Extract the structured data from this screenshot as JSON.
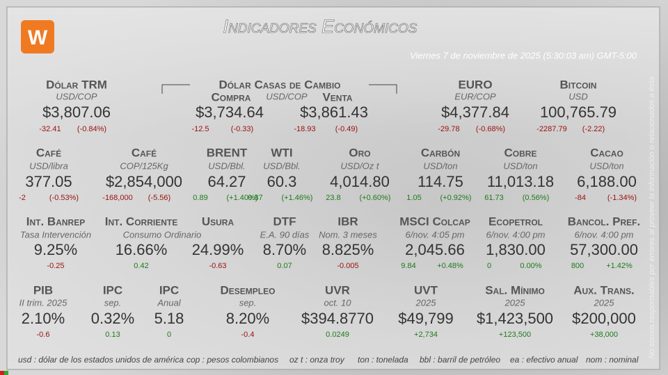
{
  "header": {
    "title": "Indicadores Económicos",
    "date": "Viernes 7 de noviembre de 2025 (5:30:03 am) GMT-5:00"
  },
  "casas": {
    "name": "Dólar Casas de Cambio",
    "unit": "USD/COP",
    "compra": {
      "label": "Compra",
      "value": "$3,734.64",
      "change": "-12.5",
      "pct": "(-0.33)"
    },
    "venta": {
      "label": "Venta",
      "value": "$3,861.43",
      "change": "-18.93",
      "pct": "(-0.49)"
    }
  },
  "indicators": [
    {
      "name": "Dólar TRM",
      "unit": "USD/COP",
      "value": "$3,807.06",
      "change": "-32.41",
      "pct": "(-0.84%)"
    },
    {
      "name": "EURO",
      "unit": "EUR/COP",
      "value": "$4,377.84",
      "change": "-29.78",
      "pct": "(-0.68%)"
    },
    {
      "name": "Bitcoin",
      "unit": "USD",
      "value": "100,765.79",
      "change": "-2287.79",
      "pct": "(-2.22)"
    },
    {
      "name": "Café",
      "unit": "USD/libra",
      "value": "377.05",
      "change": "-2",
      "pct": "(-0.53%)"
    },
    {
      "name": "Café",
      "unit": "COP/125Kg",
      "value": "$2,854,000",
      "change": "-168,000",
      "pct": "(-5.56)"
    },
    {
      "name": "BRENT",
      "unit": "USD/Bbl.",
      "value": "64.27",
      "change": "0.89",
      "pct": "(+1.40%)"
    },
    {
      "name": "WTI",
      "unit": "USD/Bbl.",
      "value": "60.3",
      "change": "0.87",
      "pct": "(+1.46%)"
    },
    {
      "name": "Oro",
      "unit": "USD/Oz t",
      "value": "4,014.80",
      "change": "23.8",
      "pct": "(+0.60%)"
    },
    {
      "name": "Carbón",
      "unit": "USD/ton",
      "value": "114.75",
      "change": "1.05",
      "pct": "(+0.92%)"
    },
    {
      "name": "Cobre",
      "unit": "USD/ton",
      "value": "11,013.18",
      "change": "61.73",
      "pct": "(0.56%)"
    },
    {
      "name": "Cacao",
      "unit": "USD/ton",
      "value": "6,188.00",
      "change": "-84",
      "pct": "(-1.34%)"
    },
    {
      "name": "Int. Banrep",
      "unit": "Tasa Intervención",
      "value": "9.25%",
      "change": "-0.25"
    },
    {
      "name": "Int. Corriente",
      "unit": "Consumo Ordinario",
      "value": "16.66%",
      "change": "0.42"
    },
    {
      "name": "Usura",
      "value": "24.99%",
      "change": "-0.63"
    },
    {
      "name": "DTF",
      "unit": "E.A. 90 días",
      "value": "8.70%",
      "change": "0.07"
    },
    {
      "name": "IBR",
      "unit": "Nom. 3 meses",
      "value": "8.825%",
      "change": "-0.005"
    },
    {
      "name": "MSCI Colcap",
      "unit": "6/nov. 4:05 pm",
      "value": "2,045.66",
      "change": "9.84",
      "pct": "+0.48%"
    },
    {
      "name": "Ecopetrol",
      "unit": "6/nov. 4:00 pm",
      "value": "1,830.00",
      "change": "0",
      "pct": "0.00%"
    },
    {
      "name": "Bancol. Pref.",
      "unit": "6/nov. 4:00 pm",
      "value": "57,300.00",
      "change": "800",
      "pct": "+1.42%"
    },
    {
      "name": "PIB",
      "unit": "II trim. 2025",
      "value": "2.10%",
      "change": "-0.6"
    },
    {
      "name": "IPC",
      "unit": "sep.",
      "value": "0.32%",
      "change": "0.13"
    },
    {
      "name": "IPC",
      "unit": "Anual",
      "value": "5.18",
      "change": "0"
    },
    {
      "name": "Desempleo",
      "unit": "sep.",
      "value": "8.20%",
      "change": "-0.4"
    },
    {
      "name": "UVR",
      "unit": "oct. 10",
      "value": "$394.8770",
      "change": "0.0249"
    },
    {
      "name": "UVT",
      "unit": "2025",
      "value": "$49,799",
      "change": "+2,734"
    },
    {
      "name": "Sal. Mínimo",
      "unit": "2025",
      "value": "$1,423,500",
      "change": "+123,500"
    },
    {
      "name": "Aux. Trans.",
      "unit": "2025",
      "value": "$200,000",
      "change": "+38,000"
    }
  ],
  "footer": [
    "usd : dólar de los estados unidos de américa",
    "cop : pesos colombianos",
    "oz t : onza troy",
    "ton : tonelada",
    "bbl : barril de petróleo",
    "ea : efectivo anual",
    "nom : nominal"
  ],
  "disclaimer": "No somos responsables por errores al proveer la información o relacionados a ésta."
}
